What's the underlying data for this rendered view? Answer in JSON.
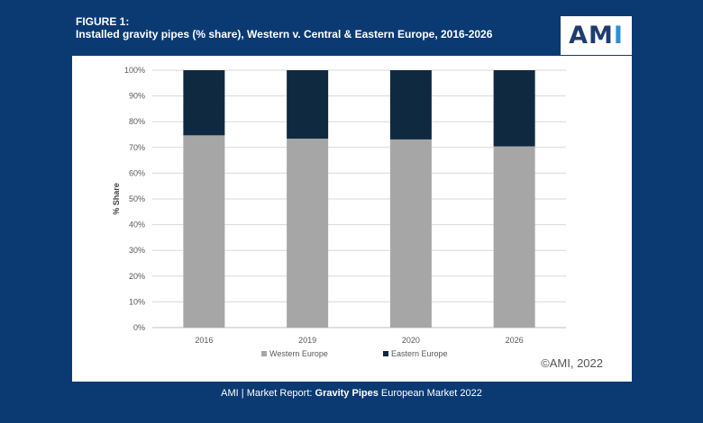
{
  "header": {
    "figure_label": "FIGURE 1:",
    "title": "Installed gravity pipes (% share), Western v. Central & Eastern Europe, 2016-2026"
  },
  "logo": {
    "text_main": "AM",
    "text_accent": "I",
    "colors": {
      "main": "#1d3d6e",
      "accent": "#2e8fd6"
    }
  },
  "chart_data": {
    "type": "bar",
    "stacked": true,
    "categories": [
      "2016",
      "2019",
      "2020",
      "2026"
    ],
    "series": [
      {
        "name": "Western Europe",
        "color": "#a6a6a6",
        "values": [
          74.7,
          73.4,
          73.1,
          70.4
        ]
      },
      {
        "name": "Eastern Europe",
        "color": "#0f2940",
        "values": [
          25.3,
          26.6,
          26.9,
          29.6
        ]
      }
    ],
    "ylabel": "% Share",
    "ylim": [
      0,
      100
    ],
    "yticks": [
      "0%",
      "10%",
      "20%",
      "30%",
      "40%",
      "50%",
      "60%",
      "70%",
      "80%",
      "90%",
      "100%"
    ],
    "grid": true,
    "legend_position": "bottom"
  },
  "copyright": "©AMI, 2022",
  "footer": {
    "prefix": "AMI | Market Report:",
    "bold": "Gravity Pipes",
    "suffix": "European Market 2022"
  }
}
